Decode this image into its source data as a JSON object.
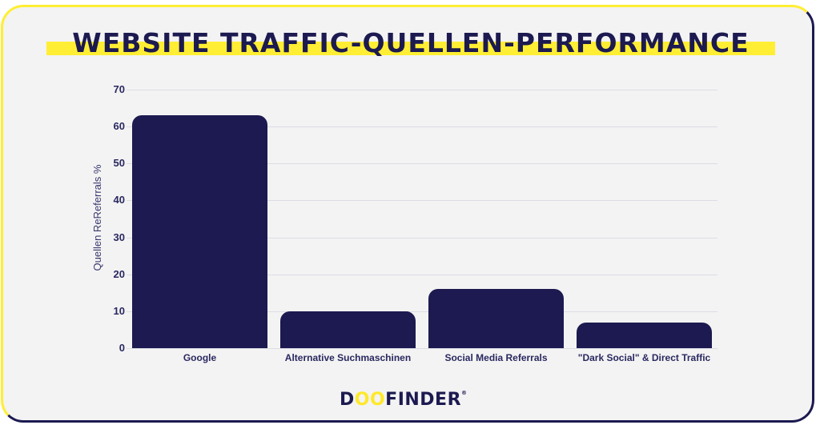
{
  "header": {
    "title": "WEBSITE TRAFFIC-QUELLEN-PERFORMANCE"
  },
  "footer": {
    "logo_pre": "D",
    "logo_oo": "OO",
    "logo_post": "FINDER",
    "logo_mark": "®"
  },
  "colors": {
    "bar": "#1c1a50",
    "accent": "#ffee33",
    "background": "#f3f3f3"
  },
  "chart_data": {
    "type": "bar",
    "title": "WEBSITE TRAFFIC-QUELLEN-PERFORMANCE",
    "xlabel": "",
    "ylabel": "Quellen ReReferrals %",
    "categories": [
      "Google",
      "Alternative Suchmaschinen",
      "Social Media Referrals",
      "\"Dark Social\" & Direct Traffic"
    ],
    "values": [
      63,
      10,
      16,
      7
    ],
    "ylim": [
      0,
      70
    ],
    "yticks": [
      "0",
      "10",
      "20",
      "30",
      "40",
      "50",
      "60",
      "70"
    ],
    "grid": true,
    "legend": "none"
  }
}
